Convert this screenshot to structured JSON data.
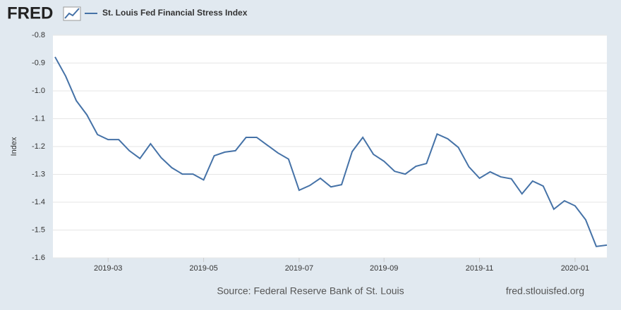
{
  "chart_data": {
    "type": "line",
    "logo": "FRED",
    "ylabel": "Index",
    "source": "Source: Federal Reserve Bank of St. Louis",
    "website": "fred.stlouisfed.org",
    "categories": [
      null,
      null,
      null,
      null,
      null,
      "2019-03",
      null,
      null,
      null,
      null,
      null,
      null,
      null,
      null,
      "2019-05",
      null,
      null,
      null,
      null,
      null,
      null,
      null,
      null,
      "2019-07",
      null,
      null,
      null,
      null,
      null,
      null,
      null,
      "2019-09",
      null,
      null,
      null,
      null,
      null,
      null,
      null,
      null,
      "2019-11",
      null,
      null,
      null,
      null,
      null,
      null,
      null,
      null,
      "2020-01",
      null,
      null,
      null
    ],
    "series": [
      {
        "name": "St. Louis Fed Financial Stress Index",
        "color": "#4572a7",
        "values": [
          -0.878,
          -0.947,
          -1.035,
          -1.086,
          -1.157,
          -1.175,
          -1.175,
          -1.215,
          -1.243,
          -1.19,
          -1.24,
          -1.276,
          -1.299,
          -1.299,
          -1.32,
          -1.233,
          -1.22,
          -1.215,
          -1.167,
          -1.167,
          -1.195,
          -1.223,
          -1.245,
          -1.357,
          -1.34,
          -1.314,
          -1.345,
          -1.337,
          -1.218,
          -1.167,
          -1.228,
          -1.253,
          -1.289,
          -1.299,
          -1.271,
          -1.261,
          -1.155,
          -1.172,
          -1.203,
          -1.273,
          -1.314,
          -1.291,
          -1.309,
          -1.316,
          -1.37,
          -1.324,
          -1.342,
          -1.425,
          -1.395,
          -1.413,
          -1.463,
          -1.559,
          -1.554
        ]
      }
    ],
    "ylim": [
      -1.6,
      -0.8
    ],
    "yticks": [
      -0.8,
      -0.9,
      {
        "value": -1,
        "label": "-1.0"
      },
      -1.1,
      -1.2,
      -1.3,
      -1.4,
      -1.5,
      -1.6
    ],
    "grid": true
  }
}
